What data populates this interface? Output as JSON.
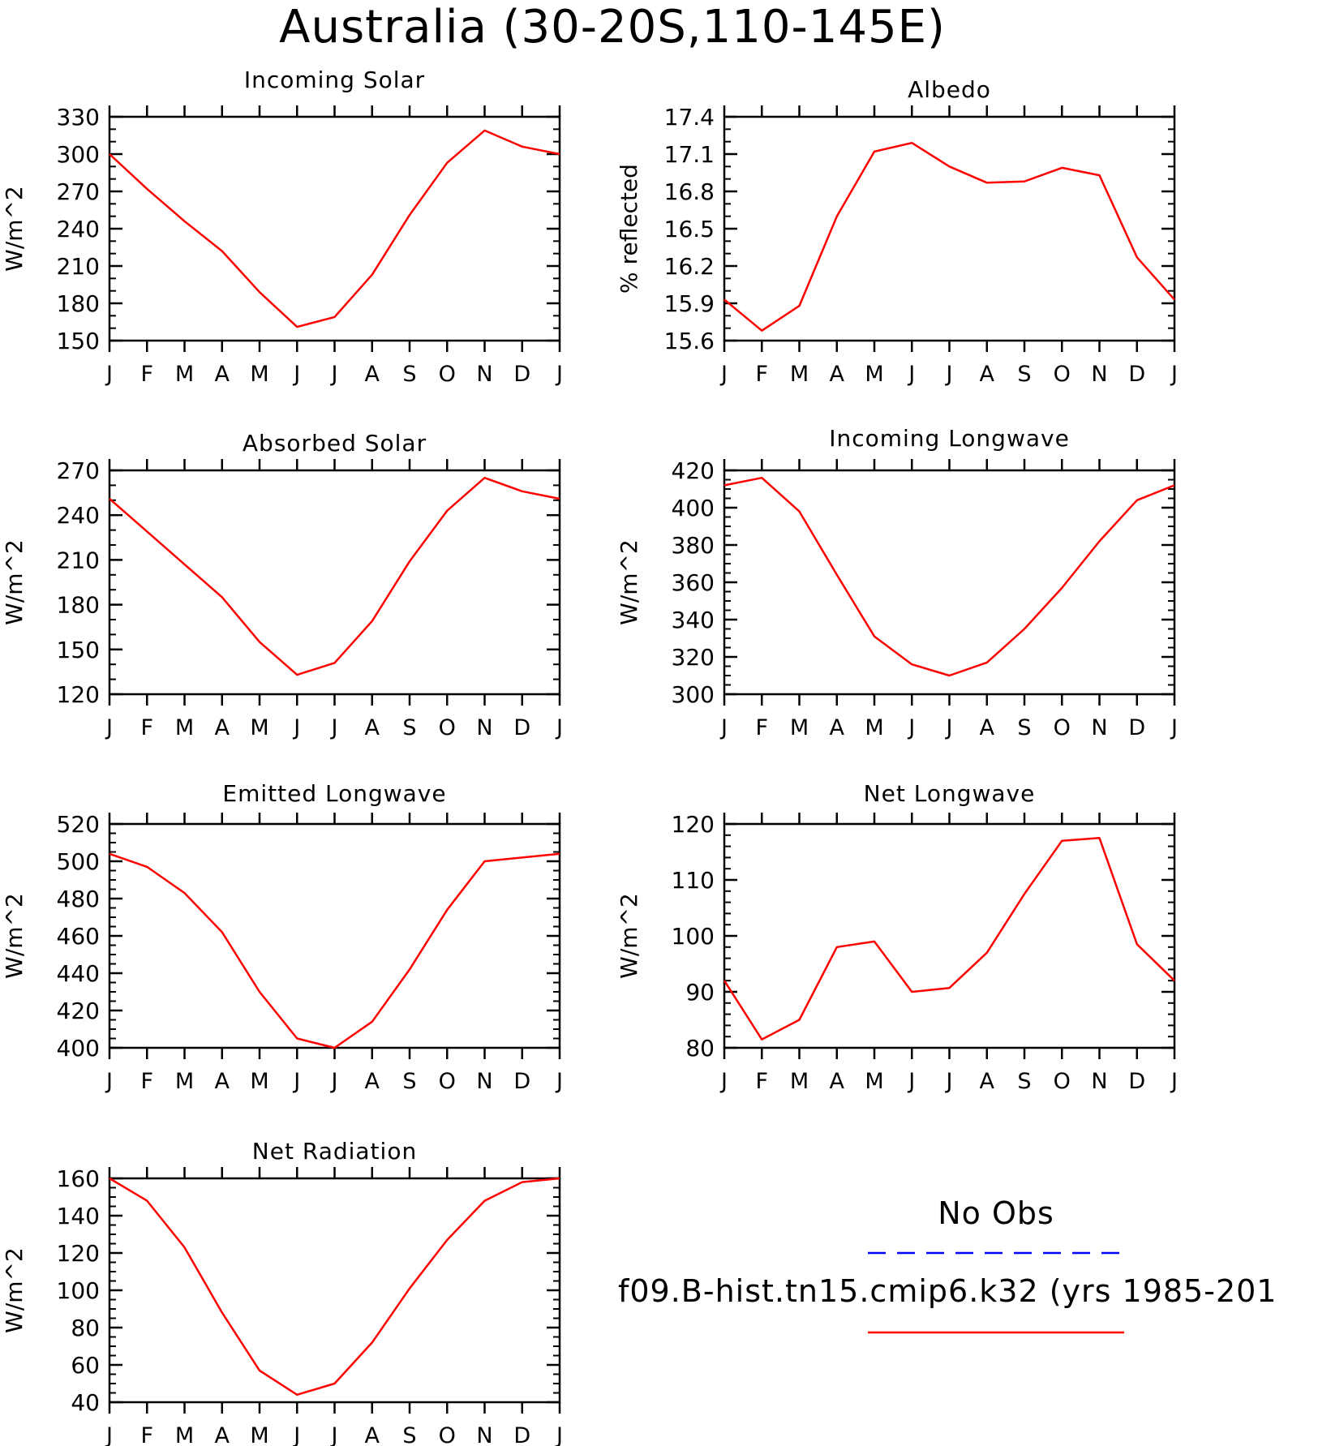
{
  "title": "Australia (30-20S,110-145E)",
  "months": [
    "J",
    "F",
    "M",
    "A",
    "M",
    "J",
    "J",
    "A",
    "S",
    "O",
    "N",
    "D",
    "J"
  ],
  "colors": {
    "model": "#ff0000",
    "obs": "#0000ff",
    "axis": "#000000"
  },
  "legend": {
    "obs_label": "No Obs",
    "model_label": "f09.B-hist.tn15.cmip6.k32 (yrs 1985-201"
  },
  "chart_data": [
    {
      "type": "line",
      "title": "Incoming Solar",
      "ylabel": "W/m^2",
      "ylim": [
        150,
        330
      ],
      "yticks": [
        150,
        180,
        210,
        240,
        270,
        300,
        330
      ],
      "yminor": 10,
      "x": [
        "J",
        "F",
        "M",
        "A",
        "M",
        "J",
        "J",
        "A",
        "S",
        "O",
        "N",
        "D",
        "J"
      ],
      "series": [
        {
          "values": [
            300,
            272,
            246,
            222,
            189,
            161,
            169,
            203,
            251,
            293,
            319,
            306,
            300
          ]
        }
      ]
    },
    {
      "type": "line",
      "title": "Albedo",
      "ylabel": "% reflected",
      "ylim": [
        15.6,
        17.4
      ],
      "yticks": [
        "15.6",
        "15.9",
        "16.2",
        "16.5",
        "16.8",
        "17.1",
        "17.4"
      ],
      "yminor": 0.1,
      "x": [
        "J",
        "F",
        "M",
        "A",
        "M",
        "J",
        "J",
        "A",
        "S",
        "O",
        "N",
        "D",
        "J"
      ],
      "series": [
        {
          "values": [
            15.93,
            15.68,
            15.88,
            16.6,
            17.12,
            17.19,
            17.0,
            16.87,
            16.88,
            16.99,
            16.93,
            16.27,
            15.93
          ]
        }
      ]
    },
    {
      "type": "line",
      "title": "Absorbed Solar",
      "ylabel": "W/m^2",
      "ylim": [
        120,
        270
      ],
      "yticks": [
        120,
        150,
        180,
        210,
        240,
        270
      ],
      "yminor": 10,
      "x": [
        "J",
        "F",
        "M",
        "A",
        "M",
        "J",
        "J",
        "A",
        "S",
        "O",
        "N",
        "D",
        "J"
      ],
      "series": [
        {
          "values": [
            251,
            229,
            207,
            185,
            155,
            133,
            141,
            169,
            209,
            243,
            265,
            256,
            251
          ]
        }
      ]
    },
    {
      "type": "line",
      "title": "Incoming Longwave",
      "ylabel": "W/m^2",
      "ylim": [
        300,
        420
      ],
      "yticks": [
        300,
        320,
        340,
        360,
        380,
        400,
        420
      ],
      "yminor": 5,
      "x": [
        "J",
        "F",
        "M",
        "A",
        "M",
        "J",
        "J",
        "A",
        "S",
        "O",
        "N",
        "D",
        "J"
      ],
      "series": [
        {
          "values": [
            412,
            416,
            398,
            364,
            331,
            316,
            310,
            317,
            335,
            357,
            382,
            404,
            412
          ]
        }
      ]
    },
    {
      "type": "line",
      "title": "Emitted Longwave",
      "ylabel": "W/m^2",
      "ylim": [
        400,
        520
      ],
      "yticks": [
        400,
        420,
        440,
        460,
        480,
        500,
        520
      ],
      "yminor": 5,
      "x": [
        "J",
        "F",
        "M",
        "A",
        "M",
        "J",
        "J",
        "A",
        "S",
        "O",
        "N",
        "D",
        "J"
      ],
      "series": [
        {
          "values": [
            504,
            497,
            483,
            462,
            430,
            405,
            400,
            414,
            442,
            474,
            500,
            502,
            504
          ]
        }
      ]
    },
    {
      "type": "line",
      "title": "Net Longwave",
      "ylabel": "W/m^2",
      "ylim": [
        80,
        120
      ],
      "yticks": [
        80,
        90,
        100,
        110,
        120
      ],
      "yminor": 2,
      "x": [
        "J",
        "F",
        "M",
        "A",
        "M",
        "J",
        "J",
        "A",
        "S",
        "O",
        "N",
        "D",
        "J"
      ],
      "series": [
        {
          "values": [
            92,
            81.5,
            85,
            98,
            99,
            90,
            90.7,
            97,
            107.5,
            117,
            117.5,
            98.5,
            92
          ]
        }
      ]
    },
    {
      "type": "line",
      "title": "Net Radiation",
      "ylabel": "W/m^2",
      "ylim": [
        40,
        160
      ],
      "yticks": [
        40,
        60,
        80,
        100,
        120,
        140,
        160
      ],
      "yminor": 5,
      "x": [
        "J",
        "F",
        "M",
        "A",
        "M",
        "J",
        "J",
        "A",
        "S",
        "O",
        "N",
        "D",
        "J"
      ],
      "series": [
        {
          "values": [
            160,
            148,
            123,
            88,
            57,
            44,
            50,
            72,
            101,
            127,
            148,
            158,
            160
          ]
        }
      ]
    }
  ]
}
